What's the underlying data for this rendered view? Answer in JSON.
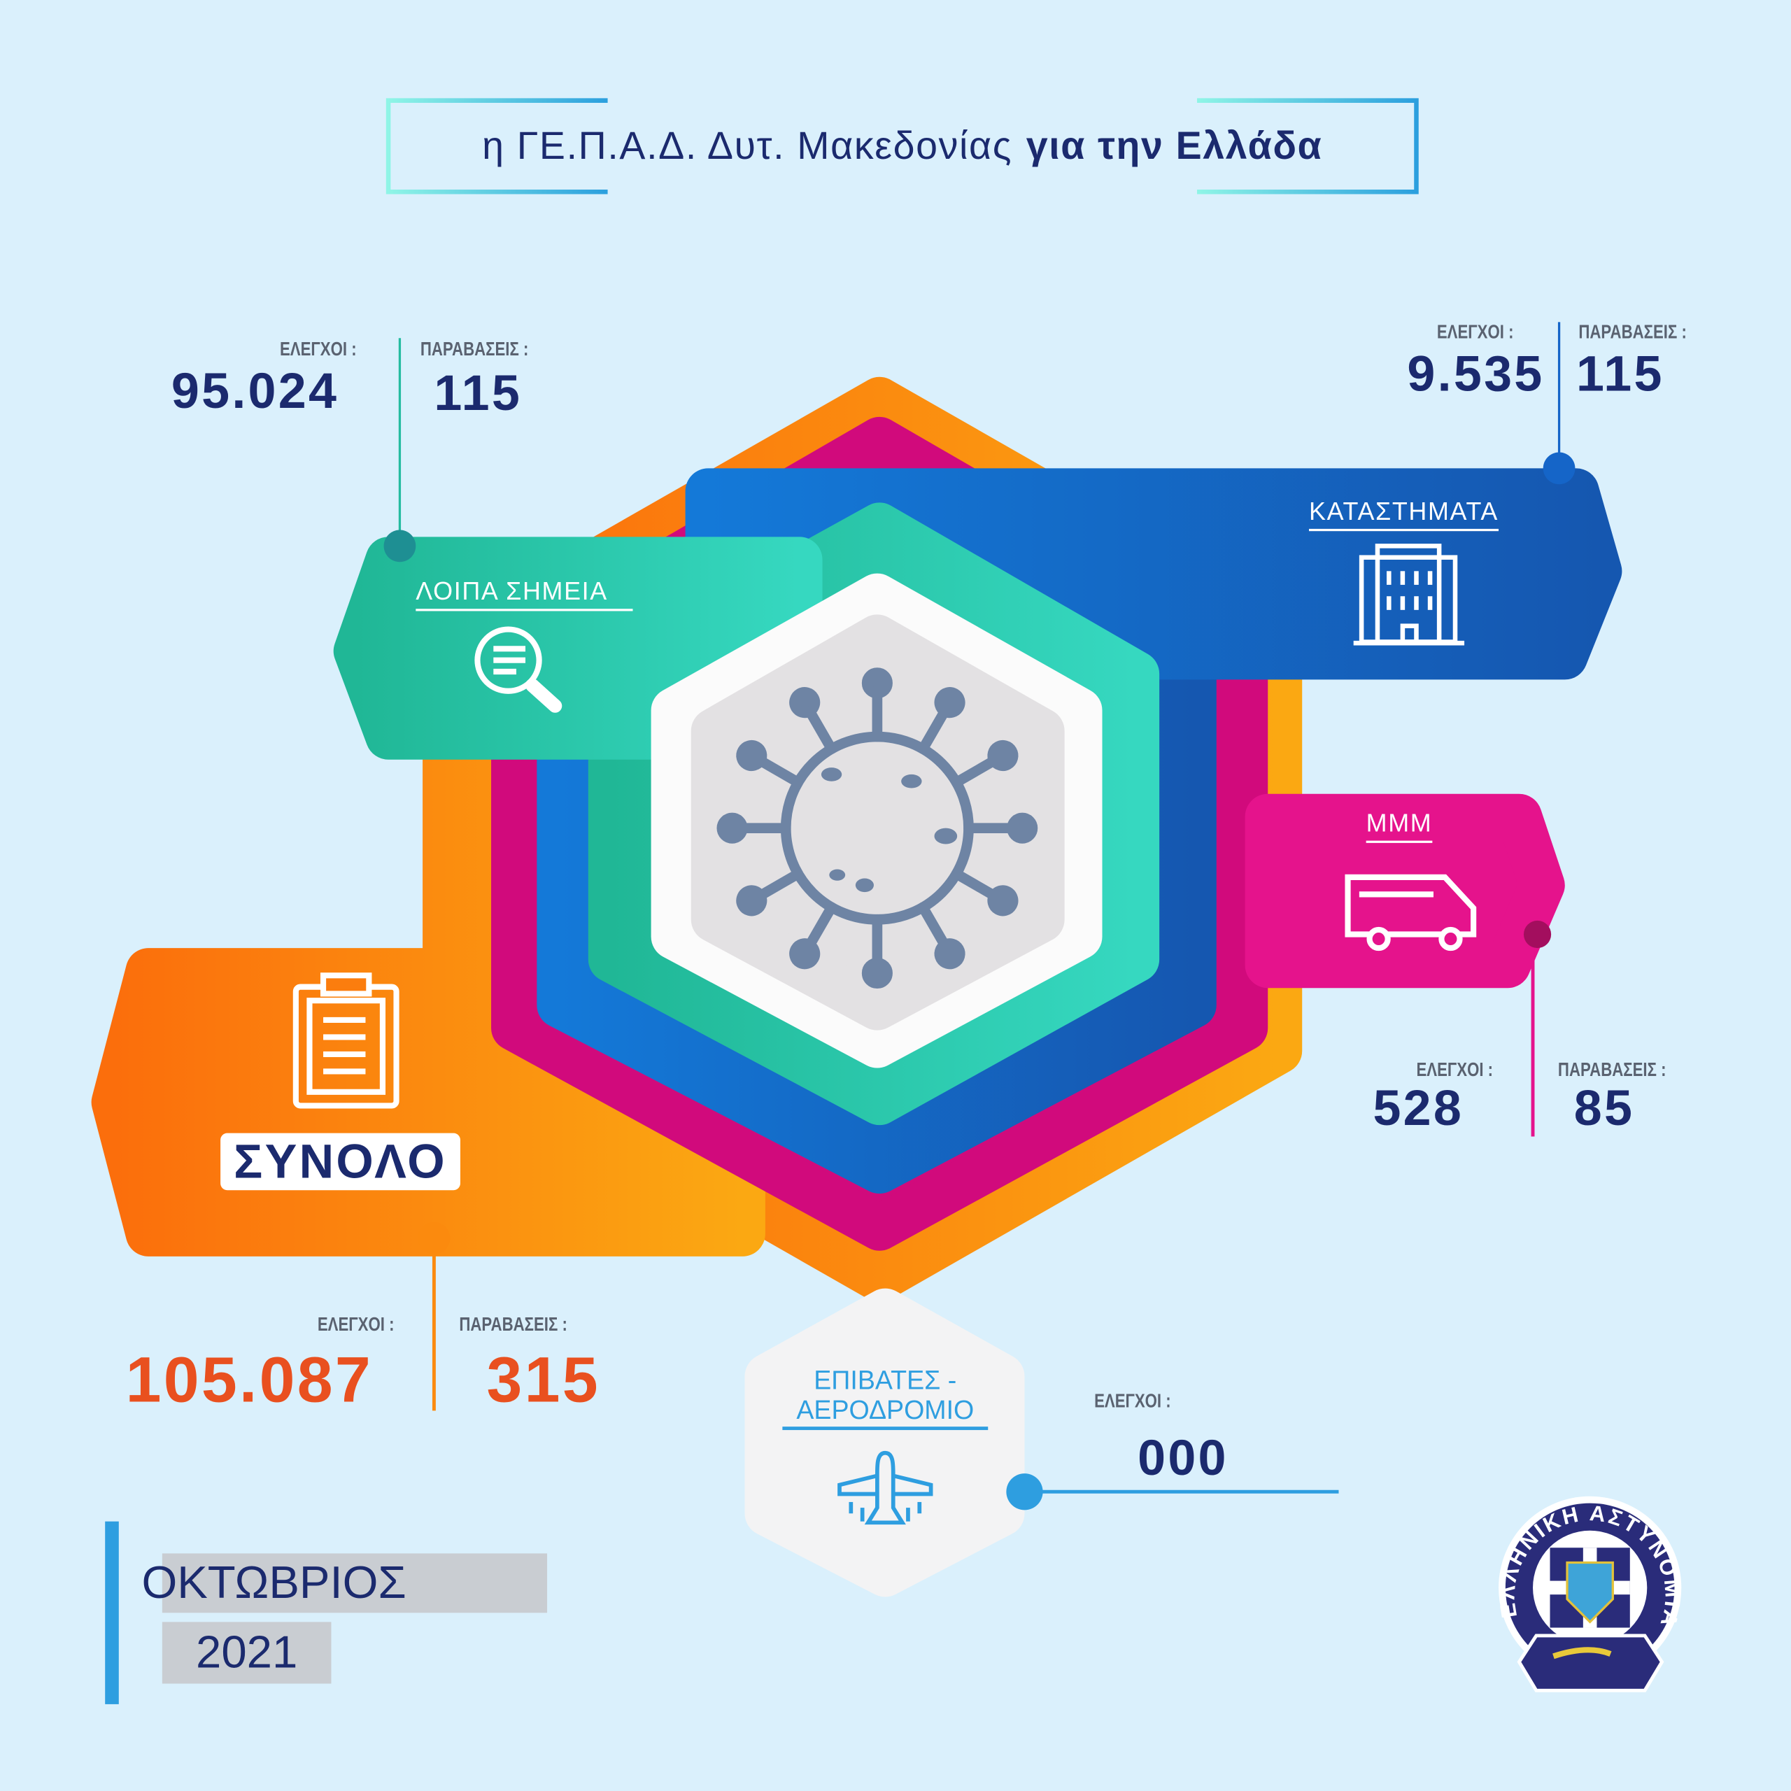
{
  "title": {
    "normal": "η ΓΕ.Π.Α.Δ. Δυτ. Μακεδονίας",
    "bold": "για την Ελλάδα"
  },
  "labels": {
    "checks": "ΕΛΕΓΧΟΙ :",
    "violations": "ΠΑΡΑΒΑΣΕΙΣ :"
  },
  "sections": {
    "other_points": {
      "label": "ΛΟΙΠΑ ΣΗΜΕΙΑ",
      "checks": "95.024",
      "violations": "115",
      "icon": "search-document-icon",
      "color": "#22bfa0"
    },
    "stores": {
      "label": "ΚΑΤΑΣΤΗΜΑΤΑ",
      "checks": "9.535",
      "violations": "115",
      "icon": "building-icon",
      "color": "#1565c8"
    },
    "transport": {
      "label": "ΜΜΜ",
      "checks": "528",
      "violations": "85",
      "icon": "bus-icon",
      "color": "#e5138c"
    },
    "total": {
      "label": "ΣΥΝΟΛΟ",
      "checks": "105.087",
      "violations": "315",
      "icon": "clipboard-icon",
      "color": "#fb8a0e"
    },
    "airport": {
      "label_line1": "ΕΠΙΒΑΤΕΣ -",
      "label_line2": "ΑΕΡΟΔΡΟΜΙΟ",
      "checks": "000",
      "icon": "airplane-icon",
      "color": "#2e9ee0"
    }
  },
  "period": {
    "month": "ΟΚΤΩΒΡΙΟΣ",
    "year": "2021"
  },
  "logo": {
    "text": "ΕΛΛΗΝΙΚΗ ΑΣΤΥΝΟΜΙΑ"
  }
}
